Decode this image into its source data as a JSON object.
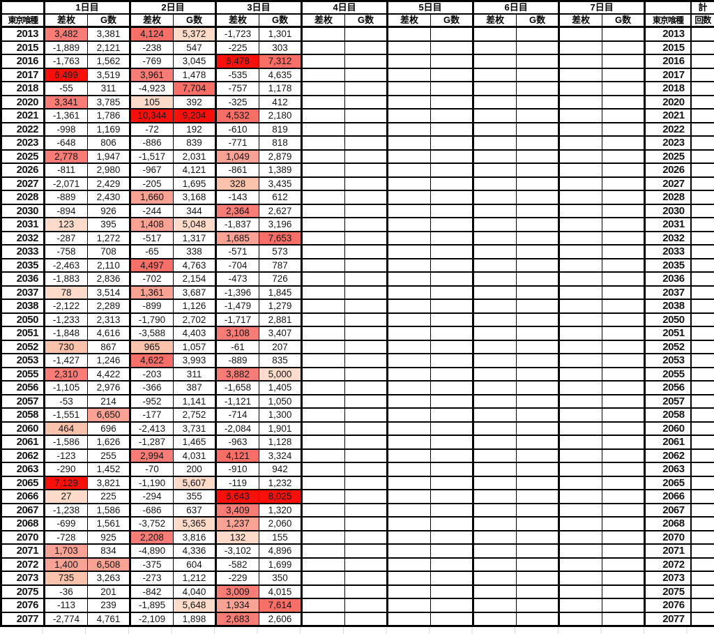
{
  "header": {
    "series_label": "東京喰種",
    "days": [
      "1日目",
      "2日目",
      "3日目",
      "4日目",
      "5日目",
      "6日目",
      "7日目"
    ],
    "diff_label": "差枚",
    "games_label": "G数",
    "total_label": "計",
    "count_label": "回数",
    "corner_left": "",
    "corner_right": ""
  },
  "colors": {
    "border": "#000000",
    "text": "#151515"
  },
  "palette": [
    "",
    "#fcdbca",
    "#fbc2ac",
    "#faa294",
    "#f97d76",
    "#f86f67",
    "#fb0f0b"
  ],
  "rows": [
    {
      "label": "2013",
      "cells": [
        [
          "3,482",
          4
        ],
        [
          "3,381",
          0
        ],
        [
          "4,124",
          5
        ],
        [
          "5,372",
          1
        ],
        [
          "-1,723",
          0
        ],
        [
          "1,301",
          0
        ]
      ]
    },
    {
      "label": "2015",
      "cells": [
        [
          "-1,889",
          0
        ],
        [
          "2,121",
          0
        ],
        [
          "-238",
          0
        ],
        [
          "547",
          0
        ],
        [
          "-225",
          0
        ],
        [
          "303",
          0
        ]
      ]
    },
    {
      "label": "2016",
      "cells": [
        [
          "-1,763",
          0
        ],
        [
          "1,562",
          0
        ],
        [
          "-769",
          0
        ],
        [
          "3,045",
          0
        ],
        [
          "6,478",
          6
        ],
        [
          "7,312",
          5
        ]
      ]
    },
    {
      "label": "2017",
      "cells": [
        [
          "6,499",
          6
        ],
        [
          "3,519",
          0
        ],
        [
          "3,961",
          4
        ],
        [
          "1,478",
          0
        ],
        [
          "-535",
          0
        ],
        [
          "4,635",
          0
        ]
      ]
    },
    {
      "label": "2018",
      "cells": [
        [
          "-55",
          0
        ],
        [
          "311",
          0
        ],
        [
          "-4,923",
          0
        ],
        [
          "7,704",
          5
        ],
        [
          "-757",
          0
        ],
        [
          "1,178",
          0
        ]
      ]
    },
    {
      "label": "2020",
      "cells": [
        [
          "3,341",
          4
        ],
        [
          "3,785",
          0
        ],
        [
          "105",
          1
        ],
        [
          "392",
          0
        ],
        [
          "-325",
          0
        ],
        [
          "412",
          0
        ]
      ]
    },
    {
      "label": "2021",
      "cells": [
        [
          "-1,361",
          0
        ],
        [
          "1,786",
          0
        ],
        [
          "10,344",
          6
        ],
        [
          "9,204",
          6
        ],
        [
          "4,532",
          5
        ],
        [
          "2,180",
          0
        ]
      ]
    },
    {
      "label": "2022",
      "cells": [
        [
          "-998",
          0
        ],
        [
          "1,169",
          0
        ],
        [
          "-72",
          0
        ],
        [
          "192",
          0
        ],
        [
          "-610",
          0
        ],
        [
          "819",
          0
        ]
      ]
    },
    {
      "label": "2023",
      "cells": [
        [
          "-648",
          0
        ],
        [
          "806",
          0
        ],
        [
          "-886",
          0
        ],
        [
          "839",
          0
        ],
        [
          "-771",
          0
        ],
        [
          "818",
          0
        ]
      ]
    },
    {
      "label": "2025",
      "cells": [
        [
          "2,778",
          4
        ],
        [
          "1,947",
          0
        ],
        [
          "-1,517",
          0
        ],
        [
          "2,031",
          0
        ],
        [
          "1,049",
          3
        ],
        [
          "2,879",
          0
        ]
      ]
    },
    {
      "label": "2026",
      "cells": [
        [
          "-811",
          0
        ],
        [
          "2,980",
          0
        ],
        [
          "-967",
          0
        ],
        [
          "4,121",
          0
        ],
        [
          "-861",
          0
        ],
        [
          "1,389",
          0
        ]
      ]
    },
    {
      "label": "2027",
      "cells": [
        [
          "-2,071",
          0
        ],
        [
          "2,429",
          0
        ],
        [
          "-205",
          0
        ],
        [
          "1,695",
          0
        ],
        [
          "328",
          2
        ],
        [
          "3,435",
          0
        ]
      ]
    },
    {
      "label": "2028",
      "cells": [
        [
          "-889",
          0
        ],
        [
          "2,430",
          0
        ],
        [
          "1,660",
          3
        ],
        [
          "3,168",
          0
        ],
        [
          "-143",
          0
        ],
        [
          "612",
          0
        ]
      ]
    },
    {
      "label": "2030",
      "cells": [
        [
          "-894",
          0
        ],
        [
          "926",
          0
        ],
        [
          "-244",
          0
        ],
        [
          "344",
          0
        ],
        [
          "2,364",
          4
        ],
        [
          "2,627",
          0
        ]
      ]
    },
    {
      "label": "2031",
      "cells": [
        [
          "123",
          1
        ],
        [
          "395",
          0
        ],
        [
          "1,408",
          3
        ],
        [
          "5,048",
          1
        ],
        [
          "-1,837",
          0
        ],
        [
          "3,196",
          0
        ]
      ]
    },
    {
      "label": "2032",
      "cells": [
        [
          "-287",
          0
        ],
        [
          "1,272",
          0
        ],
        [
          "-517",
          0
        ],
        [
          "1,317",
          0
        ],
        [
          "1,685",
          3
        ],
        [
          "7,653",
          5
        ]
      ]
    },
    {
      "label": "2033",
      "cells": [
        [
          "-758",
          0
        ],
        [
          "708",
          0
        ],
        [
          "-65",
          0
        ],
        [
          "338",
          0
        ],
        [
          "-571",
          0
        ],
        [
          "573",
          0
        ]
      ]
    },
    {
      "label": "2035",
      "cells": [
        [
          "-2,463",
          0
        ],
        [
          "2,110",
          0
        ],
        [
          "4,497",
          5
        ],
        [
          "4,763",
          0
        ],
        [
          "-704",
          0
        ],
        [
          "787",
          0
        ]
      ]
    },
    {
      "label": "2036",
      "cells": [
        [
          "-1,883",
          0
        ],
        [
          "2,836",
          0
        ],
        [
          "-702",
          0
        ],
        [
          "2,154",
          0
        ],
        [
          "-473",
          0
        ],
        [
          "726",
          0
        ]
      ]
    },
    {
      "label": "2037",
      "cells": [
        [
          "78",
          1
        ],
        [
          "3,514",
          0
        ],
        [
          "1,361",
          3
        ],
        [
          "3,687",
          0
        ],
        [
          "-1,396",
          0
        ],
        [
          "1,845",
          0
        ]
      ]
    },
    {
      "label": "2038",
      "cells": [
        [
          "-2,122",
          0
        ],
        [
          "2,289",
          0
        ],
        [
          "-899",
          0
        ],
        [
          "1,126",
          0
        ],
        [
          "-1,479",
          0
        ],
        [
          "1,279",
          0
        ]
      ]
    },
    {
      "label": "2050",
      "cells": [
        [
          "-1,233",
          0
        ],
        [
          "2,313",
          0
        ],
        [
          "-1,790",
          0
        ],
        [
          "2,702",
          0
        ],
        [
          "-1,717",
          0
        ],
        [
          "2,881",
          0
        ]
      ]
    },
    {
      "label": "2051",
      "cells": [
        [
          "-1,848",
          0
        ],
        [
          "4,616",
          0
        ],
        [
          "-3,588",
          0
        ],
        [
          "4,403",
          0
        ],
        [
          "3,108",
          4
        ],
        [
          "3,407",
          0
        ]
      ]
    },
    {
      "label": "2052",
      "cells": [
        [
          "730",
          2
        ],
        [
          "867",
          0
        ],
        [
          "965",
          2
        ],
        [
          "1,057",
          0
        ],
        [
          "-61",
          0
        ],
        [
          "207",
          0
        ]
      ]
    },
    {
      "label": "2053",
      "cells": [
        [
          "-1,427",
          0
        ],
        [
          "1,246",
          0
        ],
        [
          "4,622",
          5
        ],
        [
          "3,993",
          0
        ],
        [
          "-889",
          0
        ],
        [
          "835",
          0
        ]
      ]
    },
    {
      "label": "2055",
      "cells": [
        [
          "2,310",
          4
        ],
        [
          "4,422",
          0
        ],
        [
          "-203",
          0
        ],
        [
          "311",
          0
        ],
        [
          "3,882",
          4
        ],
        [
          "5,000",
          1
        ]
      ]
    },
    {
      "label": "2056",
      "cells": [
        [
          "-1,105",
          0
        ],
        [
          "2,976",
          0
        ],
        [
          "-366",
          0
        ],
        [
          "387",
          0
        ],
        [
          "-1,658",
          0
        ],
        [
          "1,405",
          0
        ]
      ]
    },
    {
      "label": "2057",
      "cells": [
        [
          "-53",
          0
        ],
        [
          "214",
          0
        ],
        [
          "-952",
          0
        ],
        [
          "1,141",
          0
        ],
        [
          "-1,121",
          0
        ],
        [
          "1,050",
          0
        ]
      ]
    },
    {
      "label": "2058",
      "cells": [
        [
          "-1,551",
          0
        ],
        [
          "6,650",
          3
        ],
        [
          "-177",
          0
        ],
        [
          "2,752",
          0
        ],
        [
          "-714",
          0
        ],
        [
          "1,300",
          0
        ]
      ]
    },
    {
      "label": "2060",
      "cells": [
        [
          "464",
          2
        ],
        [
          "696",
          0
        ],
        [
          "-2,413",
          0
        ],
        [
          "3,731",
          0
        ],
        [
          "-2,084",
          0
        ],
        [
          "1,901",
          0
        ]
      ]
    },
    {
      "label": "2061",
      "cells": [
        [
          "-1,586",
          0
        ],
        [
          "1,626",
          0
        ],
        [
          "-1,287",
          0
        ],
        [
          "1,465",
          0
        ],
        [
          "-963",
          0
        ],
        [
          "1,128",
          0
        ]
      ]
    },
    {
      "label": "2062",
      "cells": [
        [
          "-123",
          0
        ],
        [
          "255",
          0
        ],
        [
          "2,994",
          4
        ],
        [
          "4,031",
          0
        ],
        [
          "4,121",
          5
        ],
        [
          "3,324",
          0
        ]
      ]
    },
    {
      "label": "2063",
      "cells": [
        [
          "-290",
          0
        ],
        [
          "1,452",
          0
        ],
        [
          "-70",
          0
        ],
        [
          "200",
          0
        ],
        [
          "-910",
          0
        ],
        [
          "942",
          0
        ]
      ]
    },
    {
      "label": "2065",
      "cells": [
        [
          "7,129",
          6
        ],
        [
          "3,821",
          0
        ],
        [
          "-1,190",
          0
        ],
        [
          "5,607",
          1
        ],
        [
          "-119",
          0
        ],
        [
          "1,232",
          0
        ]
      ]
    },
    {
      "label": "2066",
      "cells": [
        [
          "27",
          1
        ],
        [
          "225",
          0
        ],
        [
          "-294",
          0
        ],
        [
          "355",
          0
        ],
        [
          "6,643",
          6
        ],
        [
          "8,025",
          6
        ]
      ]
    },
    {
      "label": "2067",
      "cells": [
        [
          "-1,238",
          0
        ],
        [
          "1,586",
          0
        ],
        [
          "-686",
          0
        ],
        [
          "637",
          0
        ],
        [
          "3,409",
          4
        ],
        [
          "1,320",
          0
        ]
      ]
    },
    {
      "label": "2068",
      "cells": [
        [
          "-699",
          0
        ],
        [
          "1,561",
          0
        ],
        [
          "-3,752",
          0
        ],
        [
          "5,365",
          1
        ],
        [
          "1,237",
          3
        ],
        [
          "2,060",
          0
        ]
      ]
    },
    {
      "label": "2070",
      "cells": [
        [
          "-728",
          0
        ],
        [
          "925",
          0
        ],
        [
          "2,208",
          4
        ],
        [
          "3,816",
          0
        ],
        [
          "132",
          1
        ],
        [
          "155",
          0
        ]
      ]
    },
    {
      "label": "2071",
      "cells": [
        [
          "1,703",
          3
        ],
        [
          "834",
          0
        ],
        [
          "-4,890",
          0
        ],
        [
          "4,336",
          0
        ],
        [
          "-3,102",
          0
        ],
        [
          "4,896",
          0
        ]
      ]
    },
    {
      "label": "2072",
      "cells": [
        [
          "1,400",
          3
        ],
        [
          "6,508",
          3
        ],
        [
          "-375",
          0
        ],
        [
          "604",
          0
        ],
        [
          "-582",
          0
        ],
        [
          "1,699",
          0
        ]
      ]
    },
    {
      "label": "2073",
      "cells": [
        [
          "735",
          2
        ],
        [
          "3,263",
          0
        ],
        [
          "-273",
          0
        ],
        [
          "1,212",
          0
        ],
        [
          "-229",
          0
        ],
        [
          "350",
          0
        ]
      ]
    },
    {
      "label": "2075",
      "cells": [
        [
          "-36",
          0
        ],
        [
          "201",
          0
        ],
        [
          "-842",
          0
        ],
        [
          "4,040",
          0
        ],
        [
          "3,009",
          4
        ],
        [
          "4,015",
          0
        ]
      ]
    },
    {
      "label": "2076",
      "cells": [
        [
          "-113",
          0
        ],
        [
          "239",
          0
        ],
        [
          "-1,895",
          0
        ],
        [
          "5,648",
          1
        ],
        [
          "1,934",
          3
        ],
        [
          "7,614",
          5
        ]
      ]
    },
    {
      "label": "2077",
      "cells": [
        [
          "-2,774",
          0
        ],
        [
          "4,761",
          0
        ],
        [
          "-2,109",
          0
        ],
        [
          "1,898",
          0
        ],
        [
          "2,683",
          4
        ],
        [
          "2,606",
          0
        ]
      ]
    }
  ]
}
